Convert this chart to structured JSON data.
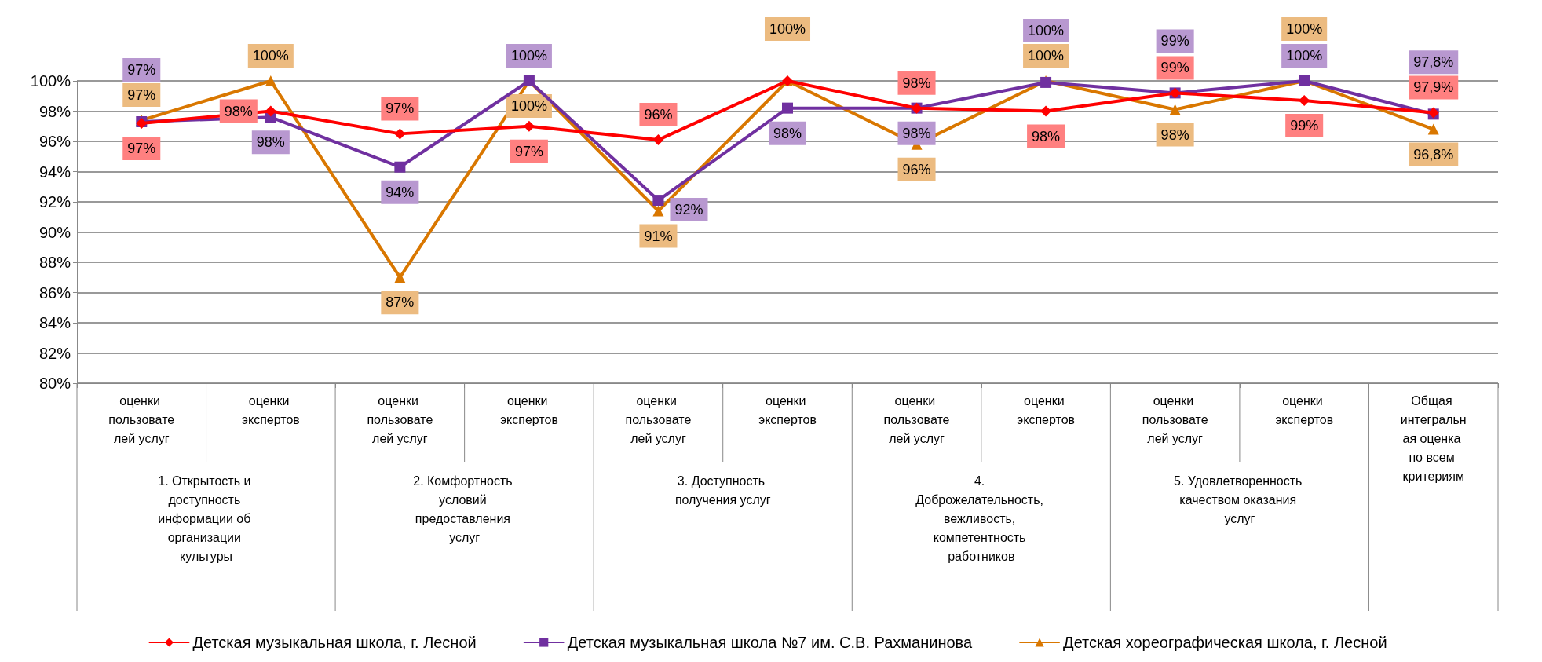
{
  "chart_data": {
    "type": "line",
    "categories": [
      "оценки пользователей услуг",
      "оценки экспертов",
      "оценки пользователей услуг",
      "оценки экспертов",
      "оценки пользователей услуг",
      "оценки экспертов",
      "оценки пользователей услуг",
      "оценки экспертов",
      "оценки пользователей услуг",
      "оценки экспертов",
      "Общая интегральная оценка по всем критериям"
    ],
    "annotations": [
      "1. Открытость и доступность информации об организации культуры",
      "2. Комфортность условий предоставления услуг",
      "3. Доступность получения услуг",
      "4. Доброжелательность, вежливость, компетентность работников",
      "5. Удовлетворенность качеством оказания услуг"
    ],
    "series": [
      {
        "name": "Детская музыкальная школа, г. Лесной",
        "color": "#ff0000",
        "marker": "diamond",
        "values": [
          97.2,
          98.0,
          96.5,
          97.0,
          96.1,
          100,
          98.2,
          98.0,
          99.2,
          98.7,
          97.9
        ],
        "value_labels": [
          "97%",
          "98%",
          "97%",
          "97%",
          "96%",
          null,
          "98%",
          "98%",
          "99%",
          "99%",
          "97,9%"
        ]
      },
      {
        "name": "Детская музыкальная школа №7 им. С.В. Рахманинова",
        "color": "#7030a0",
        "marker": "square",
        "values": [
          97.3,
          97.6,
          94.3,
          100,
          92.1,
          98.2,
          98.2,
          99.9,
          99.2,
          100,
          97.8
        ],
        "value_labels": [
          "97%",
          "98%",
          "94%",
          "100%",
          "92%",
          "98%",
          "98%",
          "100%",
          "99%",
          "100%",
          "97,8%"
        ]
      },
      {
        "name": "Детская хореографическая школа, г. Лесной",
        "color": "#d97700",
        "marker": "triangle",
        "values": [
          97.4,
          100,
          87.0,
          100,
          91.4,
          100,
          95.8,
          100,
          98.1,
          100,
          96.8
        ],
        "value_labels": [
          "97%",
          "100%",
          "87%",
          "100%",
          "91%",
          "100%",
          "96%",
          "100%",
          "98%",
          "100%",
          "96,8%"
        ]
      }
    ],
    "ylim": [
      80,
      100
    ],
    "yticks": [
      {
        "value": 80,
        "label": "80%"
      },
      {
        "value": 82,
        "label": "82%"
      },
      {
        "value": 84,
        "label": "84%"
      },
      {
        "value": 86,
        "label": "86%"
      },
      {
        "value": 88,
        "label": "88%"
      },
      {
        "value": 90,
        "label": "90%"
      },
      {
        "value": 92,
        "label": "92%"
      },
      {
        "value": 94,
        "label": "94%"
      },
      {
        "value": 96,
        "label": "96%"
      },
      {
        "value": 98,
        "label": "98%"
      },
      {
        "value": 100,
        "label": "100%"
      }
    ],
    "grid": "y",
    "legend": "bottom",
    "line_style": "solid"
  }
}
